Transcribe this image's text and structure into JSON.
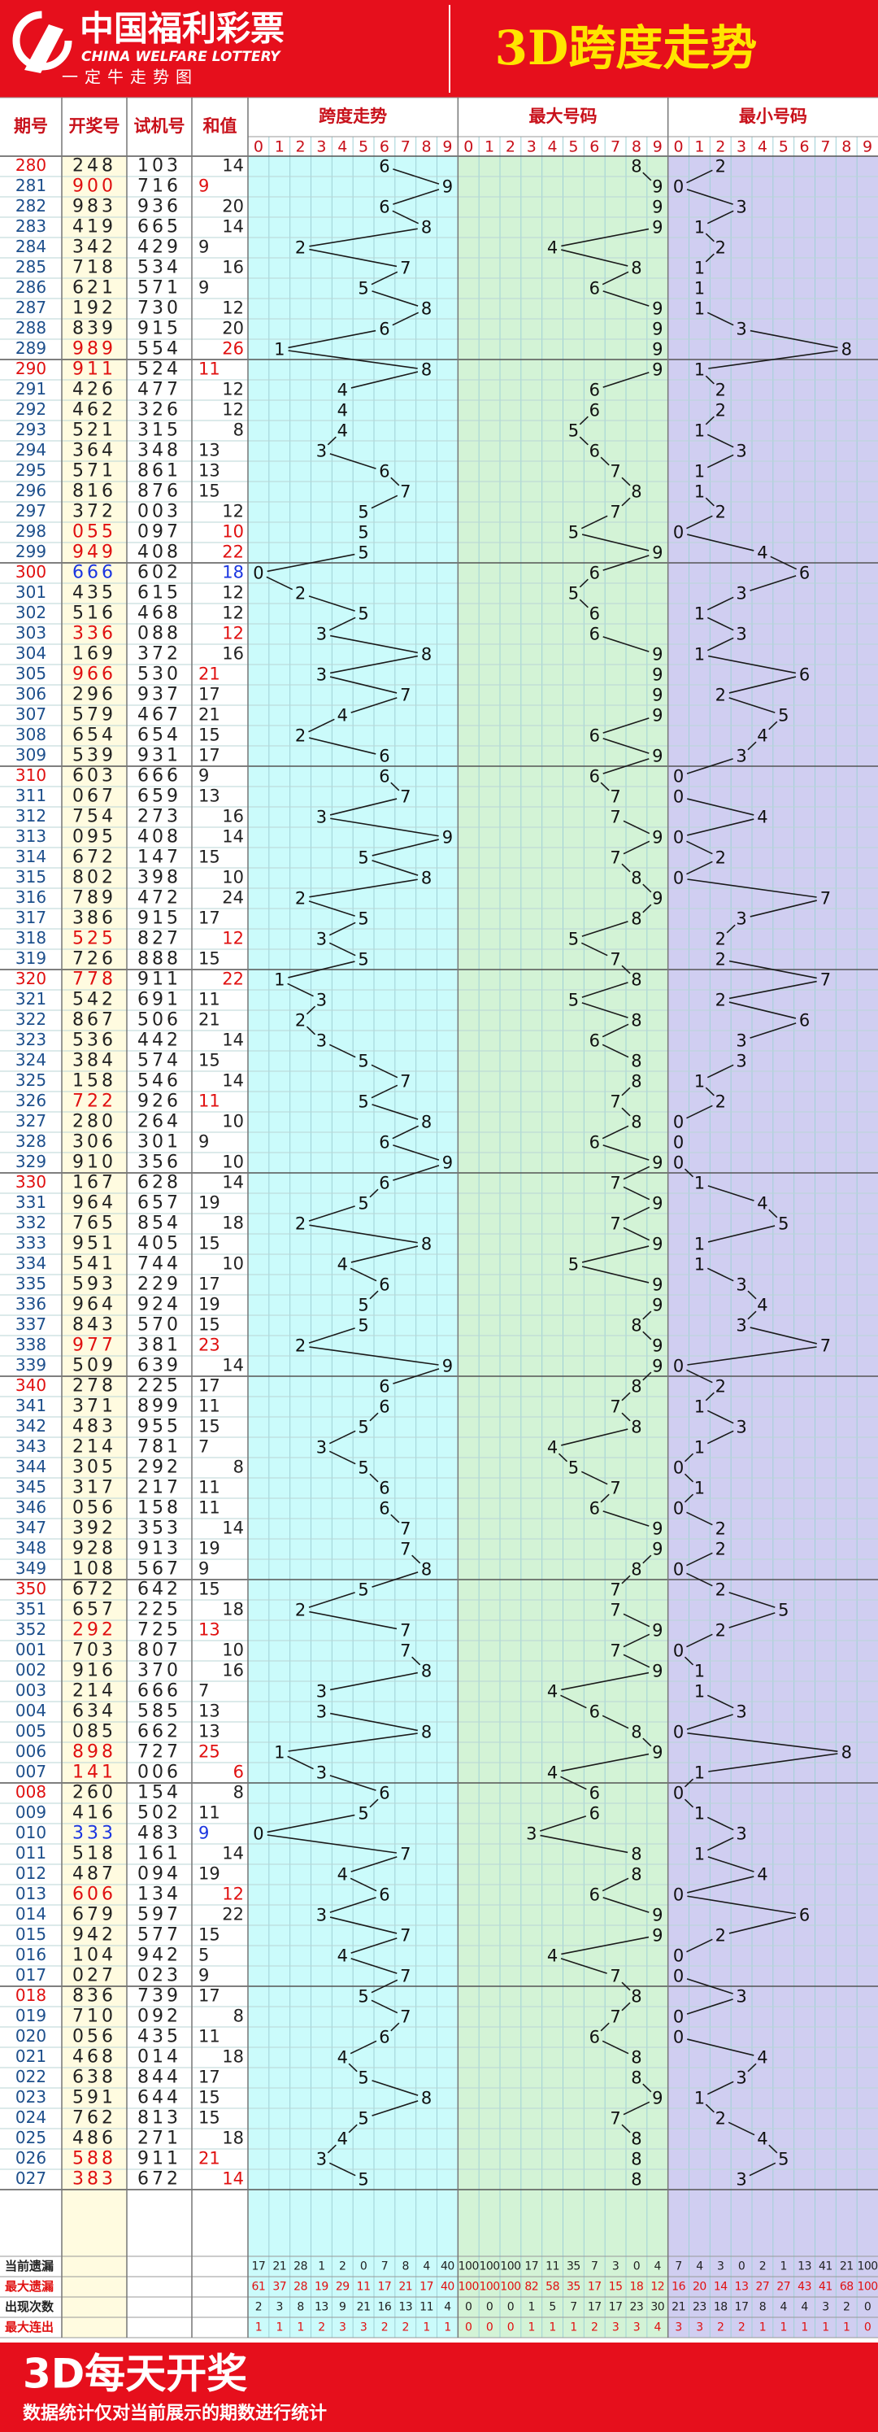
{
  "header": {
    "logo_cn": "中国福利彩票",
    "logo_en": "CHINA WELFARE LOTTERY",
    "logo_slogan": "一定牛走势图",
    "title": "3D跨度走势"
  },
  "columns": [
    "期号",
    "开奖号",
    "试机号",
    "和值",
    "跨度走势",
    "最大号码",
    "最小号码"
  ],
  "digits": [
    0,
    1,
    2,
    3,
    4,
    5,
    6,
    7,
    8,
    9
  ],
  "rows": [
    [
      "280",
      "248",
      "103",
      14,
      6,
      8,
      2
    ],
    [
      "281",
      "900",
      "716",
      9,
      9,
      9,
      0
    ],
    [
      "282",
      "983",
      "936",
      20,
      6,
      9,
      3
    ],
    [
      "283",
      "419",
      "665",
      14,
      8,
      9,
      1
    ],
    [
      "284",
      "342",
      "429",
      9,
      2,
      4,
      2
    ],
    [
      "285",
      "718",
      "534",
      16,
      7,
      8,
      1
    ],
    [
      "286",
      "621",
      "571",
      9,
      5,
      6,
      1
    ],
    [
      "287",
      "192",
      "730",
      12,
      8,
      9,
      1
    ],
    [
      "288",
      "839",
      "915",
      20,
      6,
      9,
      3
    ],
    [
      "289",
      "989",
      "554",
      26,
      1,
      9,
      8
    ],
    [
      "290",
      "911",
      "524",
      11,
      8,
      9,
      1
    ],
    [
      "291",
      "426",
      "477",
      12,
      4,
      6,
      2
    ],
    [
      "292",
      "462",
      "326",
      12,
      4,
      6,
      2
    ],
    [
      "293",
      "521",
      "315",
      8,
      4,
      5,
      1
    ],
    [
      "294",
      "364",
      "348",
      13,
      3,
      6,
      3
    ],
    [
      "295",
      "571",
      "861",
      13,
      6,
      7,
      1
    ],
    [
      "296",
      "816",
      "876",
      15,
      7,
      8,
      1
    ],
    [
      "297",
      "372",
      "003",
      12,
      5,
      7,
      2
    ],
    [
      "298",
      "055",
      "097",
      10,
      5,
      5,
      0
    ],
    [
      "299",
      "949",
      "408",
      22,
      5,
      9,
      4
    ],
    [
      "300",
      "666",
      "602",
      18,
      0,
      6,
      6
    ],
    [
      "301",
      "435",
      "615",
      12,
      2,
      5,
      3
    ],
    [
      "302",
      "516",
      "468",
      12,
      5,
      6,
      1
    ],
    [
      "303",
      "336",
      "088",
      12,
      3,
      6,
      3
    ],
    [
      "304",
      "169",
      "372",
      16,
      8,
      9,
      1
    ],
    [
      "305",
      "966",
      "530",
      21,
      3,
      9,
      6
    ],
    [
      "306",
      "296",
      "937",
      17,
      7,
      9,
      2
    ],
    [
      "307",
      "579",
      "467",
      21,
      4,
      9,
      5
    ],
    [
      "308",
      "654",
      "654",
      15,
      2,
      6,
      4
    ],
    [
      "309",
      "539",
      "931",
      17,
      6,
      9,
      3
    ],
    [
      "310",
      "603",
      "666",
      9,
      6,
      6,
      0
    ],
    [
      "311",
      "067",
      "659",
      13,
      7,
      7,
      0
    ],
    [
      "312",
      "754",
      "273",
      16,
      3,
      7,
      4
    ],
    [
      "313",
      "095",
      "408",
      14,
      9,
      9,
      0
    ],
    [
      "314",
      "672",
      "147",
      15,
      5,
      7,
      2
    ],
    [
      "315",
      "802",
      "398",
      10,
      8,
      8,
      0
    ],
    [
      "316",
      "789",
      "472",
      24,
      2,
      9,
      7
    ],
    [
      "317",
      "386",
      "915",
      17,
      5,
      8,
      3
    ],
    [
      "318",
      "525",
      "827",
      12,
      3,
      5,
      2
    ],
    [
      "319",
      "726",
      "888",
      15,
      5,
      7,
      2
    ],
    [
      "320",
      "778",
      "911",
      22,
      1,
      8,
      7
    ],
    [
      "321",
      "542",
      "691",
      11,
      3,
      5,
      2
    ],
    [
      "322",
      "867",
      "506",
      21,
      2,
      8,
      6
    ],
    [
      "323",
      "536",
      "442",
      14,
      3,
      6,
      3
    ],
    [
      "324",
      "384",
      "574",
      15,
      5,
      8,
      3
    ],
    [
      "325",
      "158",
      "546",
      14,
      7,
      8,
      1
    ],
    [
      "326",
      "722",
      "926",
      11,
      5,
      7,
      2
    ],
    [
      "327",
      "280",
      "264",
      10,
      8,
      8,
      0
    ],
    [
      "328",
      "306",
      "301",
      9,
      6,
      6,
      0
    ],
    [
      "329",
      "910",
      "356",
      10,
      9,
      9,
      0
    ],
    [
      "330",
      "167",
      "628",
      14,
      6,
      7,
      1
    ],
    [
      "331",
      "964",
      "657",
      19,
      5,
      9,
      4
    ],
    [
      "332",
      "765",
      "854",
      18,
      2,
      7,
      5
    ],
    [
      "333",
      "951",
      "405",
      15,
      8,
      9,
      1
    ],
    [
      "334",
      "541",
      "744",
      10,
      4,
      5,
      1
    ],
    [
      "335",
      "593",
      "229",
      17,
      6,
      9,
      3
    ],
    [
      "336",
      "964",
      "924",
      19,
      5,
      9,
      4
    ],
    [
      "337",
      "843",
      "570",
      15,
      5,
      8,
      3
    ],
    [
      "338",
      "977",
      "381",
      23,
      2,
      9,
      7
    ],
    [
      "339",
      "509",
      "639",
      14,
      9,
      9,
      0
    ],
    [
      "340",
      "278",
      "225",
      17,
      6,
      8,
      2
    ],
    [
      "341",
      "371",
      "899",
      11,
      6,
      7,
      1
    ],
    [
      "342",
      "483",
      "955",
      15,
      5,
      8,
      3
    ],
    [
      "343",
      "214",
      "781",
      7,
      3,
      4,
      1
    ],
    [
      "344",
      "305",
      "292",
      8,
      5,
      5,
      0
    ],
    [
      "345",
      "317",
      "217",
      11,
      6,
      7,
      1
    ],
    [
      "346",
      "056",
      "158",
      11,
      6,
      6,
      0
    ],
    [
      "347",
      "392",
      "353",
      14,
      7,
      9,
      2
    ],
    [
      "348",
      "928",
      "913",
      19,
      7,
      9,
      2
    ],
    [
      "349",
      "108",
      "567",
      9,
      8,
      8,
      0
    ],
    [
      "350",
      "672",
      "642",
      15,
      5,
      7,
      2
    ],
    [
      "351",
      "657",
      "225",
      18,
      2,
      7,
      5
    ],
    [
      "352",
      "292",
      "725",
      13,
      7,
      9,
      2
    ],
    [
      "001",
      "703",
      "807",
      10,
      7,
      7,
      0
    ],
    [
      "002",
      "916",
      "370",
      16,
      8,
      9,
      1
    ],
    [
      "003",
      "214",
      "666",
      7,
      3,
      4,
      1
    ],
    [
      "004",
      "634",
      "585",
      13,
      3,
      6,
      3
    ],
    [
      "005",
      "085",
      "662",
      13,
      8,
      8,
      0
    ],
    [
      "006",
      "898",
      "727",
      25,
      1,
      9,
      8
    ],
    [
      "007",
      "141",
      "006",
      6,
      3,
      4,
      1
    ],
    [
      "008",
      "260",
      "154",
      8,
      6,
      6,
      0
    ],
    [
      "009",
      "416",
      "502",
      11,
      5,
      6,
      1
    ],
    [
      "010",
      "333",
      "483",
      9,
      0,
      3,
      3
    ],
    [
      "011",
      "518",
      "161",
      14,
      7,
      8,
      1
    ],
    [
      "012",
      "487",
      "094",
      19,
      4,
      8,
      4
    ],
    [
      "013",
      "606",
      "134",
      12,
      6,
      6,
      0
    ],
    [
      "014",
      "679",
      "597",
      22,
      3,
      9,
      6
    ],
    [
      "015",
      "942",
      "577",
      15,
      7,
      9,
      2
    ],
    [
      "016",
      "104",
      "942",
      5,
      4,
      4,
      0
    ],
    [
      "017",
      "027",
      "023",
      9,
      7,
      7,
      0
    ],
    [
      "018",
      "836",
      "739",
      17,
      5,
      8,
      3
    ],
    [
      "019",
      "710",
      "092",
      8,
      7,
      7,
      0
    ],
    [
      "020",
      "056",
      "435",
      11,
      6,
      6,
      0
    ],
    [
      "021",
      "468",
      "014",
      18,
      4,
      8,
      4
    ],
    [
      "022",
      "638",
      "844",
      17,
      5,
      8,
      3
    ],
    [
      "023",
      "591",
      "644",
      15,
      8,
      9,
      1
    ],
    [
      "024",
      "762",
      "813",
      15,
      5,
      7,
      2
    ],
    [
      "025",
      "486",
      "271",
      18,
      4,
      8,
      4
    ],
    [
      "026",
      "588",
      "911",
      21,
      3,
      8,
      5
    ],
    [
      "027",
      "383",
      "672",
      14,
      5,
      8,
      3
    ]
  ],
  "stats": {
    "labels": [
      "当前遗漏",
      "最大遗漏",
      "出现次数",
      "最大连出"
    ],
    "values": [
      [
        17,
        21,
        28,
        1,
        2,
        0,
        7,
        8,
        4,
        40,
        100,
        100,
        100,
        17,
        11,
        35,
        7,
        3,
        0,
        4,
        7,
        4,
        3,
        0,
        2,
        1,
        13,
        41,
        21,
        100
      ],
      [
        61,
        37,
        28,
        19,
        29,
        11,
        17,
        21,
        17,
        40,
        100,
        100,
        100,
        82,
        58,
        35,
        17,
        15,
        18,
        12,
        16,
        20,
        14,
        13,
        27,
        27,
        43,
        41,
        68,
        100
      ],
      [
        2,
        3,
        8,
        13,
        9,
        21,
        16,
        13,
        11,
        4,
        0,
        0,
        0,
        1,
        5,
        7,
        17,
        17,
        23,
        30,
        21,
        23,
        18,
        17,
        8,
        4,
        4,
        3,
        2,
        0
      ],
      [
        1,
        1,
        1,
        2,
        3,
        3,
        2,
        2,
        1,
        1,
        0,
        0,
        0,
        1,
        1,
        1,
        2,
        3,
        3,
        4,
        3,
        3,
        2,
        2,
        1,
        1,
        1,
        1,
        1,
        0
      ]
    ]
  },
  "footer": {
    "title": "3D每天开奖",
    "note": "数据统计仅对当前展示的期数进行统计"
  }
}
